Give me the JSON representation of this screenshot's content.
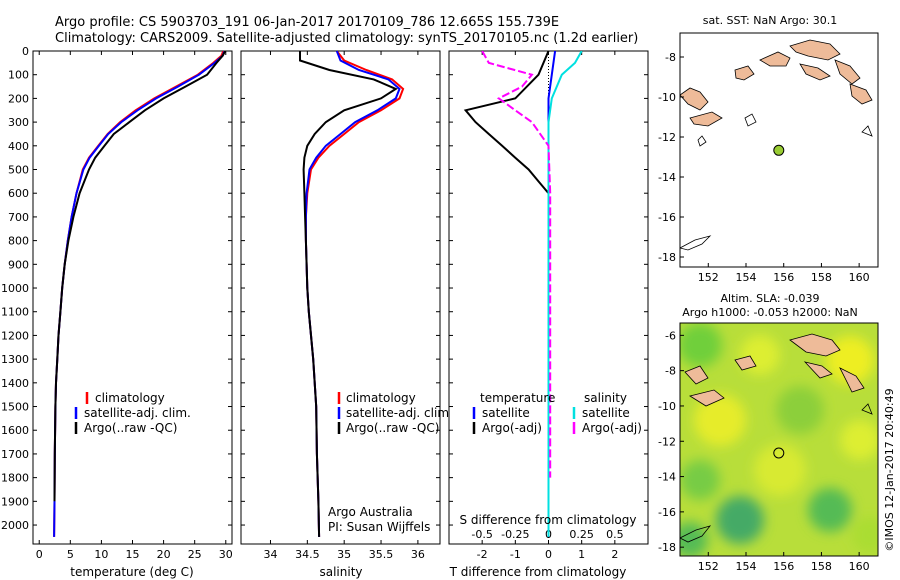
{
  "title": {
    "line1": "Argo profile: CS 5903703_191 06-Jan-2017 20170109_786 12.665S 155.739E",
    "line2": "Climatology: CARS2009. Satellite-adjusted climatology: synTS_20170105.nc (1.2d earlier)"
  },
  "colors": {
    "climatology": "#ff0000",
    "satellite": "#0000ff",
    "argo": "#000000",
    "sal_satellite": "#00e0e0",
    "sal_argo": "#ff00ff",
    "land": "#eebb99"
  },
  "chart_data": [
    {
      "type": "line",
      "panel": "temperature",
      "xlabel": "temperature (deg C)",
      "ylabel": "",
      "xlim": [
        -1,
        31
      ],
      "ylim": [
        2080,
        0
      ],
      "xticks": [
        "0",
        "5",
        "10",
        "15",
        "20",
        "25",
        "30"
      ],
      "yticks": [
        "0",
        "100",
        "200",
        "300",
        "400",
        "500",
        "600",
        "700",
        "800",
        "900",
        "1000",
        "1100",
        "1200",
        "1300",
        "1400",
        "1500",
        "1600",
        "1700",
        "1800",
        "1900",
        "2000"
      ],
      "legend": [
        "climatology",
        "satellite-adj. clim.",
        "Argo(..raw -QC)"
      ],
      "series": [
        {
          "name": "climatology",
          "x": [
            29.6,
            29.3,
            28.0,
            25.5,
            22.0,
            18.5,
            15.5,
            13.0,
            11.0,
            9.5,
            8.0,
            7.0,
            6.0,
            5.2,
            4.6,
            4.1,
            3.7,
            3.4,
            3.1,
            2.9,
            2.7,
            2.6,
            2.5,
            2.45,
            2.4
          ],
          "y": [
            0,
            20,
            50,
            100,
            150,
            200,
            250,
            300,
            350,
            400,
            450,
            500,
            600,
            700,
            800,
            900,
            1000,
            1100,
            1200,
            1300,
            1400,
            1500,
            1700,
            1900,
            2050
          ]
        },
        {
          "name": "satellite-adj. clim.",
          "x": [
            29.8,
            29.5,
            28.2,
            25.7,
            22.3,
            18.8,
            15.8,
            13.2,
            11.1,
            9.6,
            8.1,
            7.1,
            6.0,
            5.2,
            4.6,
            4.1,
            3.7,
            3.4,
            3.1,
            2.9,
            2.7,
            2.6,
            2.5,
            2.45,
            2.4
          ],
          "y": [
            0,
            20,
            50,
            100,
            150,
            200,
            250,
            300,
            350,
            400,
            450,
            500,
            600,
            700,
            800,
            900,
            1000,
            1100,
            1200,
            1300,
            1400,
            1500,
            1700,
            1900,
            2050
          ]
        },
        {
          "name": "Argo(..raw -QC)",
          "x": [
            29.9,
            29.5,
            28.5,
            27.0,
            23.5,
            20.0,
            17.0,
            14.5,
            12.0,
            10.5,
            9.0,
            8.0,
            6.5,
            5.5,
            4.7,
            4.1,
            3.7,
            3.4,
            3.1,
            2.9,
            2.7,
            2.6,
            2.5,
            2.45
          ],
          "y": [
            0,
            20,
            50,
            100,
            150,
            200,
            250,
            300,
            350,
            400,
            450,
            500,
            600,
            700,
            800,
            900,
            1000,
            1100,
            1200,
            1300,
            1400,
            1500,
            1700,
            1900
          ]
        }
      ]
    },
    {
      "type": "line",
      "panel": "salinity",
      "xlabel": "salinity",
      "xlim": [
        33.6,
        36.3
      ],
      "ylim": [
        2080,
        0
      ],
      "xticks": [
        "34",
        "34.5",
        "35",
        "35.5",
        "36"
      ],
      "legend": [
        "climatology",
        "satellite-adj. clim.",
        "Argo(..raw -QC)"
      ],
      "annotation": [
        "Argo Australia",
        "PI: Susan Wijffels"
      ],
      "series": [
        {
          "name": "climatology",
          "x": [
            34.9,
            35.0,
            35.3,
            35.65,
            35.8,
            35.75,
            35.5,
            35.2,
            35.0,
            34.8,
            34.65,
            34.55,
            34.5,
            34.48,
            34.48,
            34.49,
            34.5,
            34.52,
            34.55,
            34.58,
            34.6,
            34.62,
            34.63,
            34.65,
            34.66
          ],
          "y": [
            0,
            40,
            80,
            120,
            160,
            200,
            250,
            300,
            350,
            400,
            450,
            500,
            600,
            700,
            800,
            900,
            1000,
            1100,
            1200,
            1300,
            1400,
            1500,
            1700,
            1900,
            2050
          ]
        },
        {
          "name": "satellite-adj. clim.",
          "x": [
            34.9,
            34.95,
            35.2,
            35.6,
            35.75,
            35.7,
            35.45,
            35.15,
            34.95,
            34.75,
            34.62,
            34.53,
            34.49,
            34.48,
            34.48,
            34.49,
            34.5,
            34.52,
            34.55,
            34.58,
            34.6,
            34.62,
            34.63,
            34.65,
            34.66
          ],
          "y": [
            0,
            40,
            80,
            120,
            160,
            200,
            250,
            300,
            350,
            400,
            450,
            500,
            600,
            700,
            800,
            900,
            1000,
            1100,
            1200,
            1300,
            1400,
            1500,
            1700,
            1900,
            2050
          ]
        },
        {
          "name": "Argo(..raw -QC)",
          "x": [
            34.4,
            34.4,
            34.8,
            35.4,
            35.7,
            35.5,
            35.0,
            34.75,
            34.6,
            34.5,
            34.46,
            34.45,
            34.46,
            34.47,
            34.48,
            34.49,
            34.5,
            34.52,
            34.55,
            34.58,
            34.6,
            34.62,
            34.63,
            34.65,
            34.66
          ],
          "y": [
            0,
            40,
            80,
            120,
            160,
            200,
            250,
            300,
            350,
            400,
            450,
            500,
            600,
            700,
            800,
            900,
            1000,
            1100,
            1200,
            1300,
            1400,
            1500,
            1700,
            1900,
            2050
          ]
        }
      ]
    },
    {
      "type": "line",
      "panel": "difference",
      "xlabel_top": "S difference from climatology",
      "xlabel": "T difference from climatology",
      "xticks_top": [
        "-0.5",
        "-0.25",
        "0",
        "0.25",
        "0.5"
      ],
      "xticks": [
        "-2",
        "-1",
        "0",
        "1",
        "2"
      ],
      "xlim": [
        -3,
        3
      ],
      "ylim": [
        2080,
        0
      ],
      "legend_left": [
        "temperature",
        "satellite",
        "Argo(-adj)"
      ],
      "legend_right": [
        "salinity",
        "satellite",
        "Argo(-adj)"
      ],
      "series": [
        {
          "name": "satellite",
          "group": "temperature",
          "x": [
            0.2,
            0.1,
            0.0,
            0.0,
            0.0,
            0.0,
            0.0,
            0.0,
            0.0,
            0.0,
            0.0
          ],
          "y": [
            0,
            100,
            200,
            300,
            500,
            700,
            900,
            1200,
            1500,
            1800,
            2050
          ]
        },
        {
          "name": "Argo(-adj)",
          "group": "temperature",
          "x": [
            0.0,
            -0.3,
            -1.0,
            -2.5,
            -2.2,
            -1.8,
            -1.4,
            -1.0,
            -0.6,
            -0.3,
            0.0,
            0.0,
            0.0,
            0.0
          ],
          "y": [
            0,
            100,
            200,
            250,
            300,
            350,
            400,
            450,
            500,
            550,
            600,
            700,
            1000,
            1700
          ]
        },
        {
          "name": "satellite",
          "group": "salinity",
          "x": [
            1.0,
            0.8,
            0.4,
            0.1,
            0.0,
            0.0,
            0.0,
            0.0,
            0.0,
            0.0
          ],
          "y": [
            0,
            50,
            100,
            200,
            300,
            500,
            800,
            1200,
            1600,
            2050
          ]
        },
        {
          "name": "Argo(-adj)",
          "group": "salinity",
          "x": [
            -2.0,
            -1.8,
            -0.5,
            -0.8,
            -1.5,
            -1.0,
            -0.5,
            0.0,
            0.05,
            0.05,
            0.05,
            0.05
          ],
          "y": [
            0,
            50,
            100,
            150,
            200,
            250,
            300,
            400,
            600,
            1000,
            1400,
            1800
          ]
        }
      ]
    },
    {
      "type": "scatter",
      "panel": "map-sst",
      "title": "sat. SST: NaN Argo: 30.1",
      "xlim": [
        150.5,
        161
      ],
      "ylim": [
        -18.5,
        -6.8
      ],
      "xticks": [
        "152",
        "154",
        "156",
        "158",
        "160"
      ],
      "yticks": [
        "-8",
        "-10",
        "-12",
        "-14",
        "-16",
        "-18"
      ],
      "points": [
        {
          "lon": 155.739,
          "lat": -12.665
        }
      ]
    },
    {
      "type": "heatmap",
      "panel": "map-sla",
      "title_line1": "Altim. SLA: -0.039",
      "title_line2": "Argo h1000: -0.053 h2000: NaN",
      "xlim": [
        150.5,
        161
      ],
      "ylim": [
        -18.5,
        -5.3
      ],
      "xticks": [
        "152",
        "154",
        "156",
        "158",
        "160"
      ],
      "yticks": [
        "-6",
        "-8",
        "-10",
        "-12",
        "-14",
        "-16",
        "-18"
      ],
      "points": [
        {
          "lon": 155.739,
          "lat": -12.665
        }
      ]
    }
  ],
  "side_label": "©IMOS 12-Jan-2017 20:40:49"
}
